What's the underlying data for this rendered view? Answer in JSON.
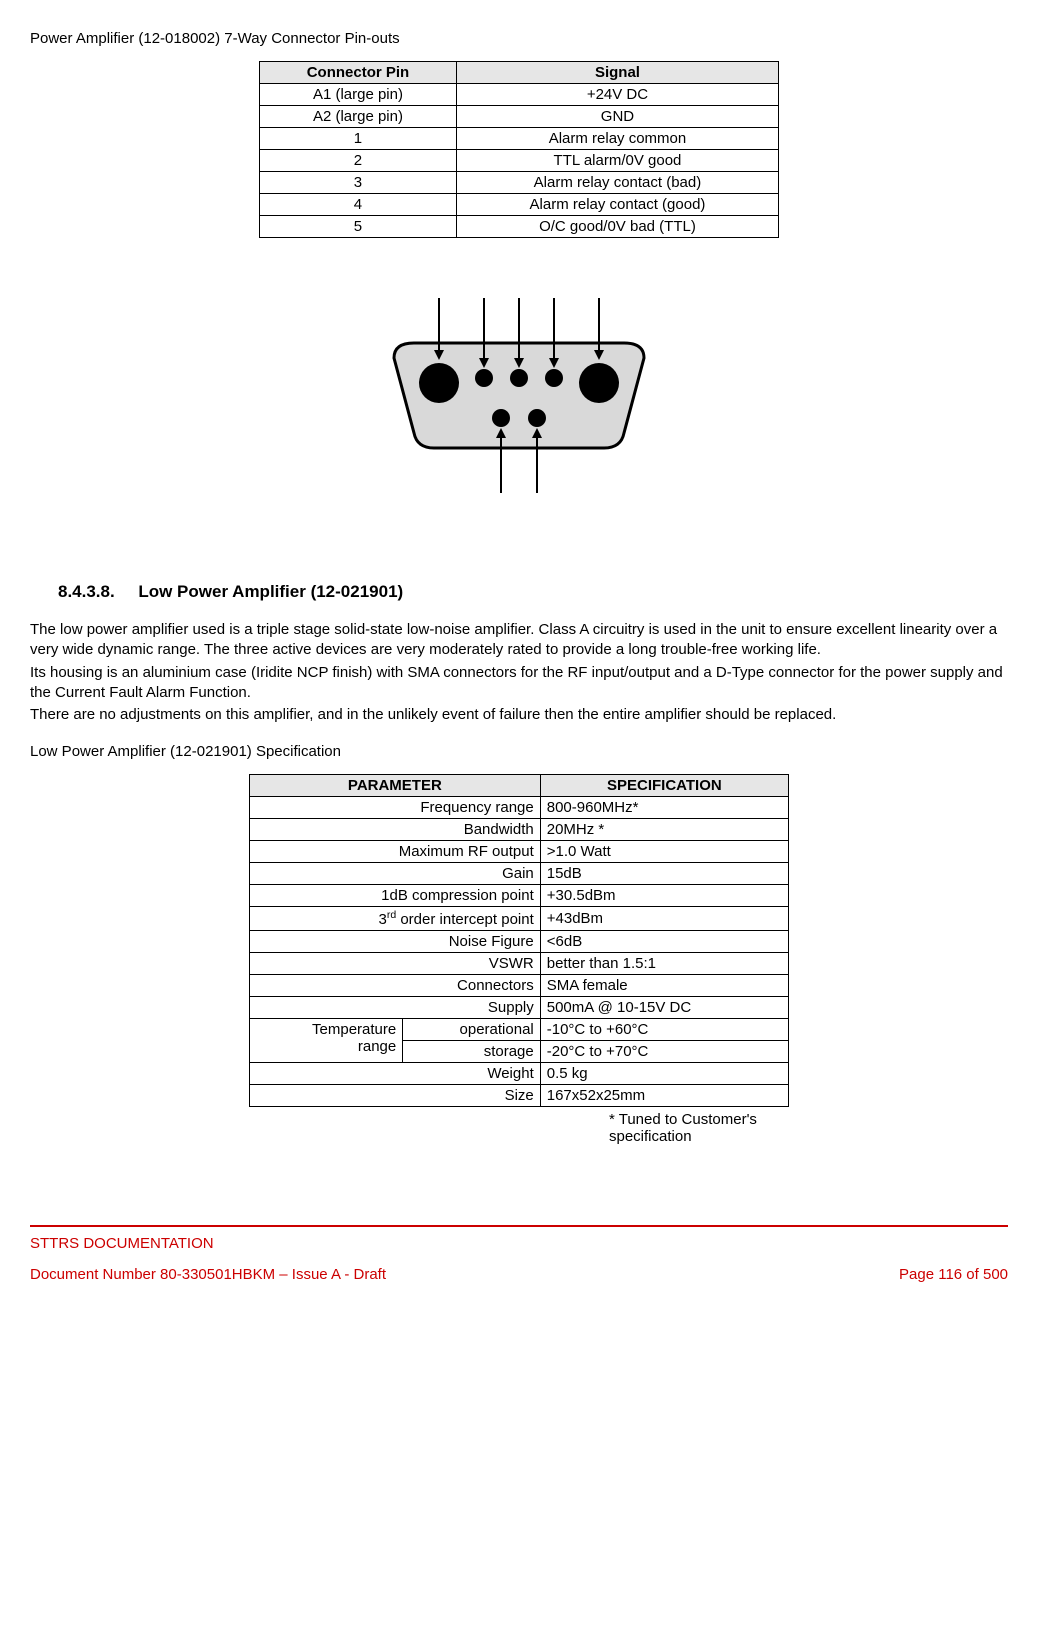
{
  "title": "Power Amplifier (12-018002) 7-Way Connector Pin-outs",
  "pinout": {
    "headers": [
      "Connector Pin",
      "Signal"
    ],
    "rows": [
      [
        "A1 (large pin)",
        "+24V DC"
      ],
      [
        "A2 (large pin)",
        "GND"
      ],
      [
        "1",
        "Alarm relay common"
      ],
      [
        "2",
        "TTL alarm/0V good"
      ],
      [
        "3",
        "Alarm relay contact (bad)"
      ],
      [
        "4",
        "Alarm relay contact (good)"
      ],
      [
        "5",
        "O/C good/0V bad (TTL)"
      ]
    ]
  },
  "connector": {
    "shell_fill": "#d9d9d9",
    "shell_stroke": "#000000",
    "pin_fill": "#000000",
    "large_pin_r": 20,
    "small_pin_r": 9,
    "arrow_stroke": "#000000"
  },
  "section": {
    "number": "8.4.3.8.",
    "heading": "Low Power Amplifier (12-021901)"
  },
  "paragraphs": [
    "The low power amplifier used is a triple stage solid-state low-noise amplifier. Class A circuitry is used in the unit to ensure excellent linearity over a very wide dynamic range. The three active devices are very moderately rated to provide a long trouble-free working life.",
    "Its housing is an aluminium case (Iridite NCP finish) with SMA connectors for the RF input/output and a D-Type connector for the power supply and the Current Fault Alarm Function.",
    "There are no adjustments on this amplifier, and in the unlikely event of failure then the entire amplifier should be replaced."
  ],
  "spec_title": "Low Power Amplifier (12-021901) Specification",
  "spec": {
    "headers": [
      "PARAMETER",
      "SPECIFICATION"
    ],
    "rows": [
      {
        "param": "Frequency range",
        "val": "800-960MHz*"
      },
      {
        "param": "Bandwidth",
        "val": "20MHz *"
      },
      {
        "param": "Maximum RF output",
        "val": ">1.0 Watt"
      },
      {
        "param": "Gain",
        "val": "15dB"
      },
      {
        "param": "1dB compression point",
        "val": "+30.5dBm"
      },
      {
        "param_html": "3<sup>rd</sup> order intercept point",
        "val": "+43dBm"
      },
      {
        "param": "Noise Figure",
        "val": "<6dB"
      },
      {
        "param": "VSWR",
        "val": "better than 1.5:1"
      },
      {
        "param": "Connectors",
        "val": "SMA female"
      },
      {
        "param": "Supply",
        "val": "500mA @ 10-15V DC"
      }
    ],
    "temp_label": "Temperature range",
    "temp_rows": [
      {
        "sub": "operational",
        "val": "-10°C to +60°C"
      },
      {
        "sub": "storage",
        "val": "-20°C to +70°C"
      }
    ],
    "tail_rows": [
      {
        "param": "Weight",
        "val": "0.5 kg"
      },
      {
        "param": "Size",
        "val": "167x52x25mm"
      }
    ]
  },
  "footnote": "* Tuned to Customer's specification",
  "footer": {
    "org": "STTRS DOCUMENTATION",
    "doc": "Document Number 80-330501HBKM – Issue A - Draft",
    "page": "Page 116 of 500"
  }
}
